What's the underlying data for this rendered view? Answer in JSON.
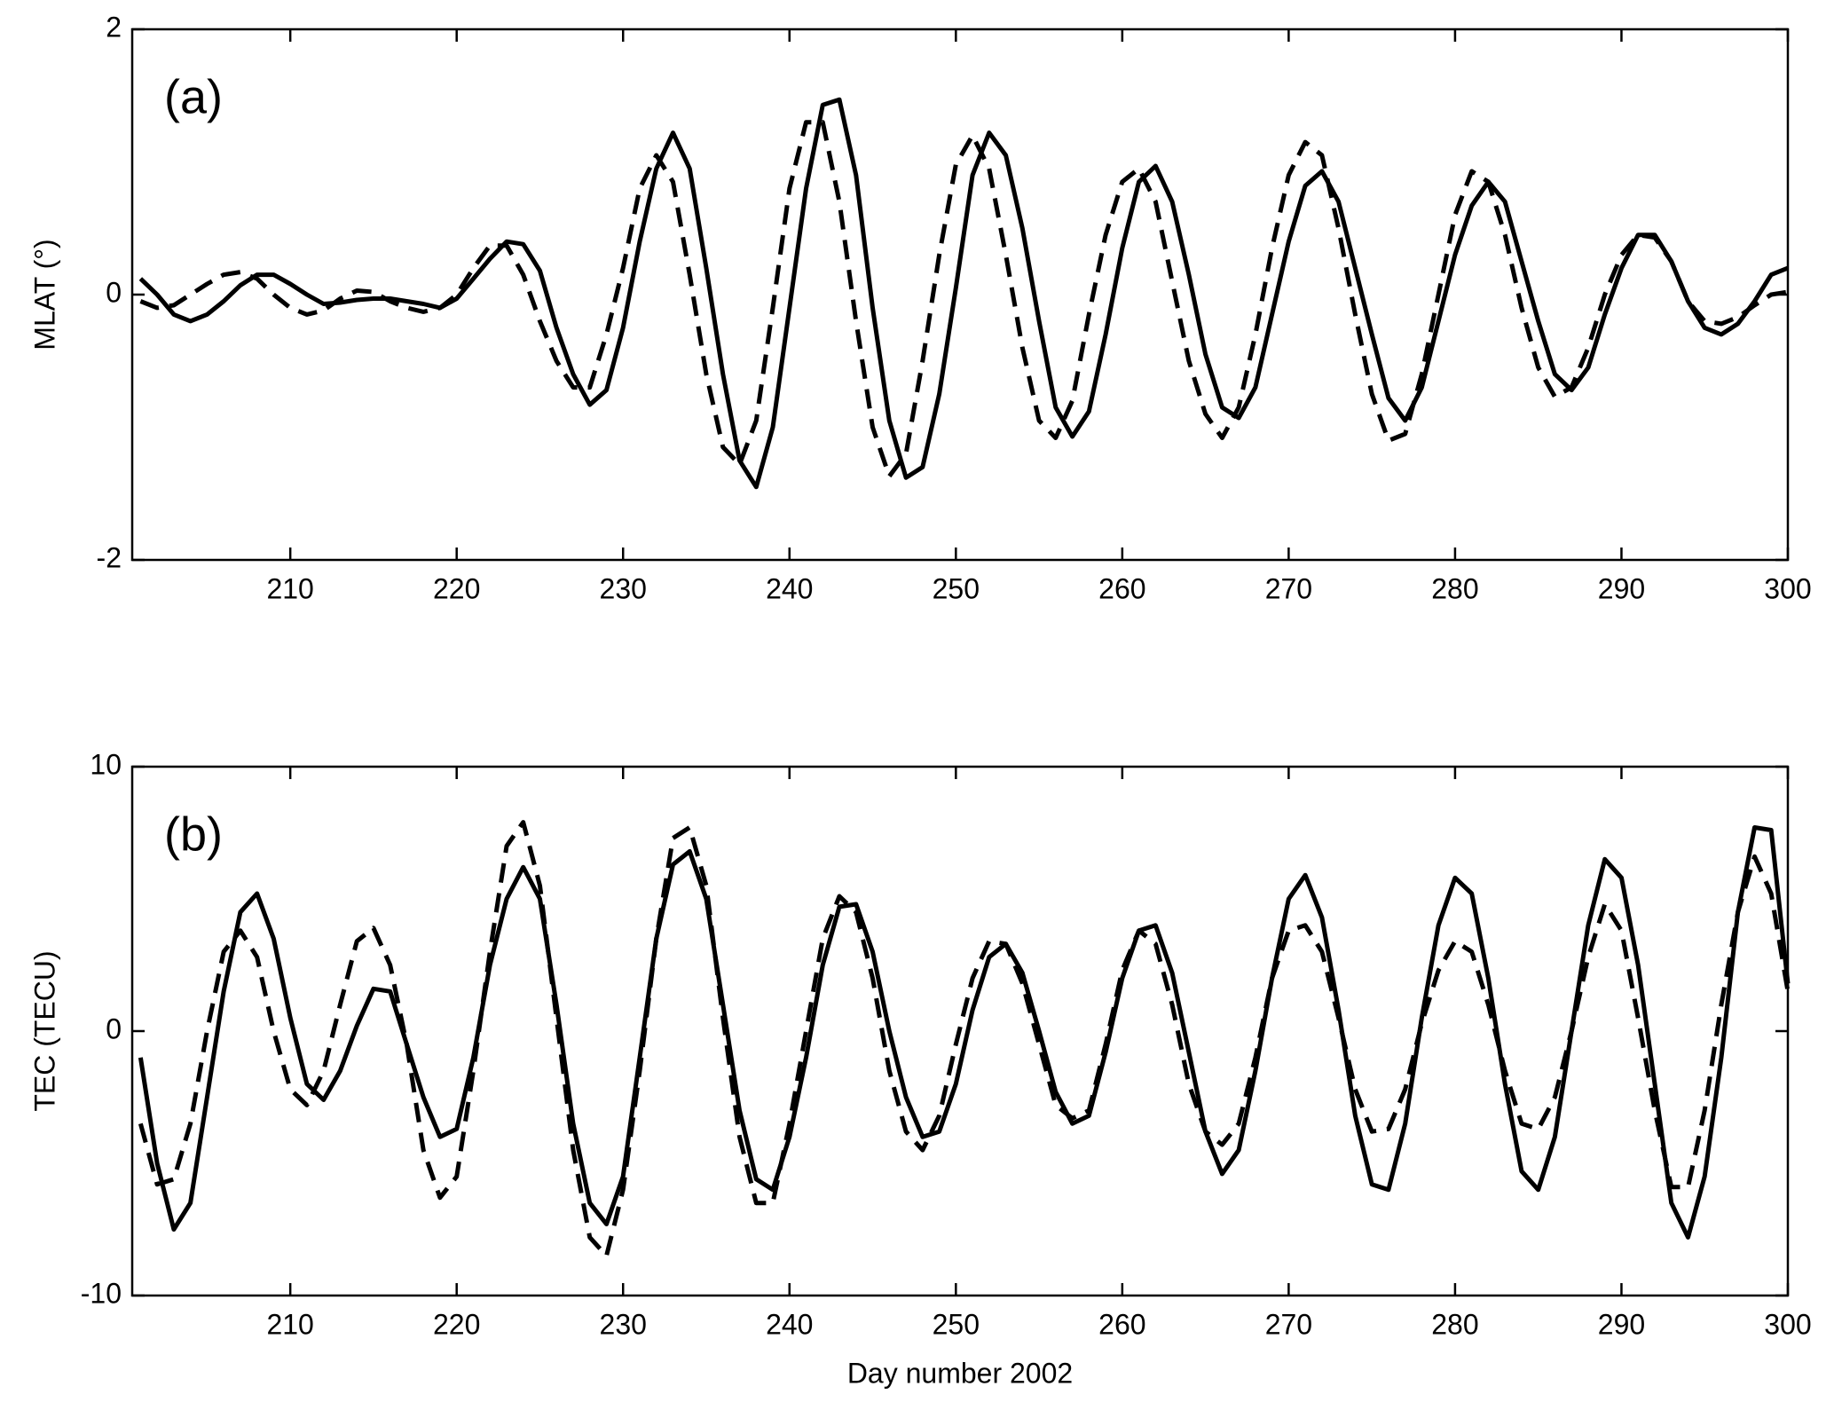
{
  "chart_data": [
    {
      "type": "line",
      "annotation": "(a)",
      "ylabel": "MLAT (°)",
      "xlim": [
        200.5,
        300
      ],
      "xticks": [
        210,
        220,
        230,
        240,
        250,
        260,
        270,
        280,
        290,
        300
      ],
      "ylim": [
        -2,
        2
      ],
      "yticks": [
        -2,
        0,
        2
      ],
      "x": [
        201,
        202,
        203,
        204,
        205,
        206,
        207,
        208,
        209,
        210,
        211,
        212,
        213,
        214,
        215,
        216,
        217,
        218,
        219,
        220,
        221,
        222,
        223,
        224,
        225,
        226,
        227,
        228,
        229,
        230,
        231,
        232,
        233,
        234,
        235,
        236,
        237,
        238,
        239,
        240,
        241,
        242,
        243,
        244,
        245,
        246,
        247,
        248,
        249,
        250,
        251,
        252,
        253,
        254,
        255,
        256,
        257,
        258,
        259,
        260,
        261,
        262,
        263,
        264,
        265,
        266,
        267,
        268,
        269,
        270,
        271,
        272,
        273,
        274,
        275,
        276,
        277,
        278,
        279,
        280,
        281,
        282,
        283,
        284,
        285,
        286,
        287,
        288,
        289,
        290,
        291,
        292,
        293,
        294,
        295,
        296,
        297,
        298,
        299,
        300
      ],
      "series": [
        {
          "color": "#000000",
          "dash": false,
          "values": [
            0.12,
            0.0,
            -0.15,
            -0.2,
            -0.15,
            -0.05,
            0.07,
            0.15,
            0.15,
            0.08,
            0.0,
            -0.07,
            -0.06,
            -0.04,
            -0.03,
            -0.03,
            -0.05,
            -0.07,
            -0.1,
            -0.03,
            0.12,
            0.27,
            0.4,
            0.38,
            0.18,
            -0.25,
            -0.6,
            -0.83,
            -0.72,
            -0.25,
            0.4,
            0.95,
            1.22,
            0.95,
            0.2,
            -0.6,
            -1.25,
            -1.45,
            -1.0,
            -0.1,
            0.8,
            1.43,
            1.47,
            0.9,
            -0.1,
            -0.95,
            -1.38,
            -1.3,
            -0.75,
            0.05,
            0.9,
            1.22,
            1.05,
            0.5,
            -0.2,
            -0.85,
            -1.07,
            -0.88,
            -0.3,
            0.35,
            0.85,
            0.97,
            0.7,
            0.15,
            -0.45,
            -0.85,
            -0.93,
            -0.7,
            -0.15,
            0.4,
            0.82,
            0.93,
            0.7,
            0.2,
            -0.3,
            -0.78,
            -0.95,
            -0.7,
            -0.2,
            0.3,
            0.67,
            0.85,
            0.7,
            0.25,
            -0.2,
            -0.6,
            -0.72,
            -0.55,
            -0.15,
            0.2,
            0.45,
            0.45,
            0.25,
            -0.05,
            -0.25,
            -0.3,
            -0.22,
            -0.05,
            0.15,
            0.2
          ]
        },
        {
          "color": "#000000",
          "dash": true,
          "values": [
            -0.05,
            -0.1,
            -0.08,
            0.0,
            0.08,
            0.15,
            0.17,
            0.12,
            0.0,
            -0.1,
            -0.15,
            -0.12,
            -0.03,
            0.03,
            0.02,
            -0.05,
            -0.1,
            -0.13,
            -0.1,
            0.0,
            0.2,
            0.37,
            0.37,
            0.15,
            -0.2,
            -0.5,
            -0.7,
            -0.7,
            -0.3,
            0.2,
            0.8,
            1.05,
            0.85,
            0.15,
            -0.6,
            -1.15,
            -1.28,
            -0.95,
            -0.1,
            0.8,
            1.3,
            1.3,
            0.7,
            -0.2,
            -1.0,
            -1.37,
            -1.2,
            -0.5,
            0.3,
            0.98,
            1.2,
            0.95,
            0.3,
            -0.4,
            -0.95,
            -1.08,
            -0.8,
            -0.15,
            0.45,
            0.85,
            0.95,
            0.7,
            0.1,
            -0.5,
            -0.9,
            -1.08,
            -0.85,
            -0.3,
            0.35,
            0.9,
            1.15,
            1.05,
            0.5,
            -0.15,
            -0.75,
            -1.1,
            -1.05,
            -0.6,
            0.0,
            0.6,
            0.93,
            0.85,
            0.45,
            -0.1,
            -0.55,
            -0.77,
            -0.7,
            -0.4,
            0.0,
            0.3,
            0.45,
            0.43,
            0.25,
            -0.05,
            -0.2,
            -0.22,
            -0.17,
            -0.08,
            0.0,
            0.02
          ]
        }
      ]
    },
    {
      "type": "line",
      "annotation": "(b)",
      "ylabel": "TEC (TECU)",
      "xlabel": "Day number 2002",
      "xlim": [
        200.5,
        300
      ],
      "xticks": [
        210,
        220,
        230,
        240,
        250,
        260,
        270,
        280,
        290,
        300
      ],
      "ylim": [
        -10,
        10
      ],
      "yticks": [
        -10,
        0,
        10
      ],
      "x": [
        201,
        202,
        203,
        204,
        205,
        206,
        207,
        208,
        209,
        210,
        211,
        212,
        213,
        214,
        215,
        216,
        217,
        218,
        219,
        220,
        221,
        222,
        223,
        224,
        225,
        226,
        227,
        228,
        229,
        230,
        231,
        232,
        233,
        234,
        235,
        236,
        237,
        238,
        239,
        240,
        241,
        242,
        243,
        244,
        245,
        246,
        247,
        248,
        249,
        250,
        251,
        252,
        253,
        254,
        255,
        256,
        257,
        258,
        259,
        260,
        261,
        262,
        263,
        264,
        265,
        266,
        267,
        268,
        269,
        270,
        271,
        272,
        273,
        274,
        275,
        276,
        277,
        278,
        279,
        280,
        281,
        282,
        283,
        284,
        285,
        286,
        287,
        288,
        289,
        290,
        291,
        292,
        293,
        294,
        295,
        296,
        297,
        298,
        299,
        300
      ],
      "series": [
        {
          "color": "#000000",
          "dash": false,
          "values": [
            -1,
            -5,
            -7.5,
            -6.5,
            -2.5,
            1.5,
            4.5,
            5.2,
            3.5,
            0.5,
            -2,
            -2.6,
            -1.5,
            0.2,
            1.6,
            1.5,
            -0.5,
            -2.5,
            -4,
            -3.7,
            -1,
            2.5,
            5,
            6.2,
            5,
            1,
            -3.5,
            -6.5,
            -7.3,
            -5.5,
            -1,
            3.5,
            6.3,
            6.8,
            5,
            1,
            -3,
            -5.6,
            -6,
            -4,
            -1,
            2.5,
            4.7,
            4.8,
            3,
            0,
            -2.5,
            -4,
            -3.8,
            -2,
            0.8,
            2.8,
            3.3,
            2.2,
            0,
            -2.3,
            -3.5,
            -3.2,
            -0.8,
            2,
            3.8,
            4,
            2.2,
            -0.8,
            -3.8,
            -5.4,
            -4.5,
            -1.5,
            2,
            5,
            5.9,
            4.3,
            0.8,
            -3.2,
            -5.8,
            -6,
            -3.5,
            0.5,
            4,
            5.8,
            5.2,
            2,
            -2,
            -5.3,
            -6,
            -4,
            0,
            4,
            6.5,
            5.8,
            2.5,
            -2,
            -6.5,
            -7.8,
            -5.5,
            -1,
            4.5,
            7.7,
            7.6,
            1.8
          ]
        },
        {
          "color": "#000000",
          "dash": true,
          "values": [
            -3.5,
            -5.8,
            -5.6,
            -3.5,
            0,
            3,
            3.8,
            2.8,
            0,
            -2.2,
            -2.8,
            -1.5,
            1,
            3.4,
            3.9,
            2.5,
            -0.5,
            -4.5,
            -6.3,
            -5.5,
            -1.5,
            3,
            7,
            7.9,
            5.5,
            0.5,
            -4.5,
            -7.8,
            -8.5,
            -6,
            -1.5,
            3.5,
            7.3,
            7.7,
            5.5,
            0.5,
            -4,
            -6.5,
            -6.5,
            -3.5,
            0,
            3.5,
            5.1,
            4.5,
            2,
            -1.5,
            -3.8,
            -4.5,
            -3.2,
            -0.5,
            2,
            3.4,
            3.3,
            1.8,
            -0.5,
            -2.8,
            -3.3,
            -3,
            -0.5,
            2.3,
            3.8,
            3.3,
            1,
            -2,
            -3.8,
            -4.3,
            -3.5,
            -1,
            2,
            3.8,
            4,
            3,
            0.5,
            -2.2,
            -3.8,
            -3.7,
            -2.2,
            0.3,
            2.3,
            3.4,
            3,
            1,
            -1.5,
            -3.5,
            -3.7,
            -2.5,
            0,
            2.8,
            4.8,
            3.8,
            0.5,
            -3,
            -5.9,
            -5.9,
            -3,
            1,
            4.5,
            6.6,
            5.2,
            1.5
          ]
        }
      ]
    }
  ]
}
